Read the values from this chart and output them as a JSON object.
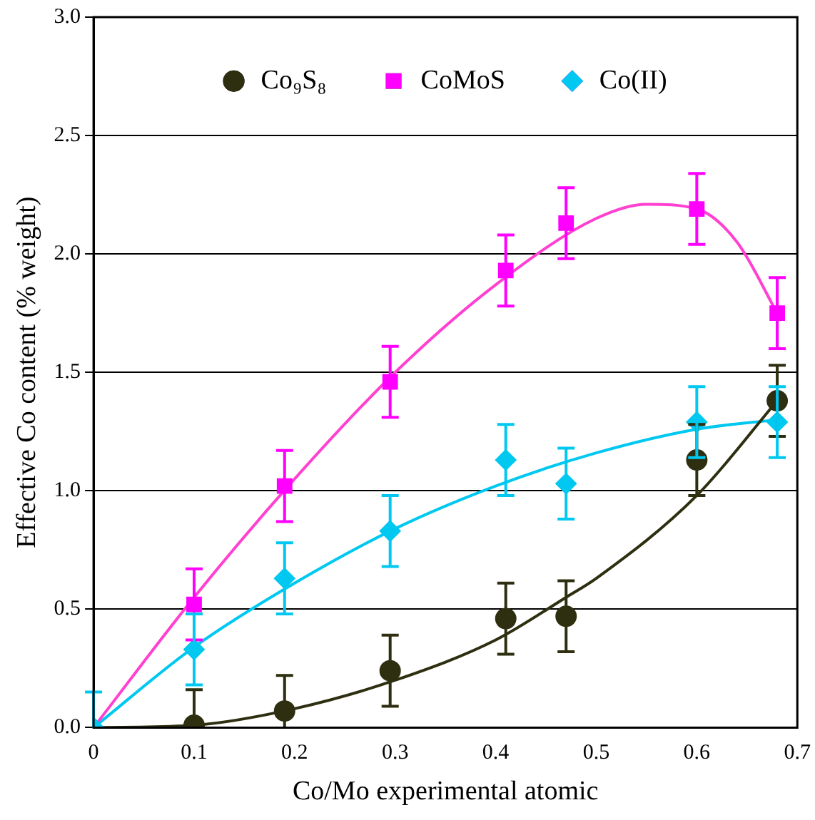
{
  "chart_data": {
    "type": "scatter",
    "xlabel": "Co/Mo experimental atomic",
    "ylabel": "Effective Co content (% weight)",
    "x": [
      0,
      0.1,
      0.19,
      0.295,
      0.41,
      0.47,
      0.6,
      0.68
    ],
    "series": [
      {
        "name": "Co₉S₈",
        "color": "#2e2e10",
        "marker": "circle",
        "values": [
          null,
          0.01,
          0.07,
          0.24,
          0.46,
          0.47,
          1.13,
          1.38
        ],
        "errors": [
          null,
          0.15,
          0.15,
          0.15,
          0.15,
          0.15,
          0.15,
          0.15
        ]
      },
      {
        "name": "CoMoS",
        "color": "#ff00ff",
        "marker": "square",
        "values": [
          null,
          0.52,
          1.02,
          1.46,
          1.93,
          2.13,
          2.19,
          1.75
        ],
        "errors": [
          null,
          0.15,
          0.15,
          0.15,
          0.15,
          0.15,
          0.15,
          0.15
        ]
      },
      {
        "name": "Co(II)",
        "color": "#00c8f0",
        "marker": "diamond",
        "values": [
          0,
          0.33,
          0.63,
          0.83,
          1.13,
          1.03,
          1.29,
          1.29
        ],
        "errors": [
          0.15,
          0.15,
          0.15,
          0.15,
          0.15,
          0.15,
          0.15,
          0.15
        ]
      },
      {
        "type": "line",
        "color": "#2e2e10",
        "marker": "none",
        "x": [
          0,
          0.1,
          0.2,
          0.3,
          0.4,
          0.47,
          0.5,
          0.6,
          0.68
        ],
        "values": [
          0,
          0.01,
          0.08,
          0.2,
          0.37,
          0.55,
          0.63,
          0.98,
          1.38
        ]
      },
      {
        "type": "line",
        "color": "#ff40d0",
        "marker": "none",
        "x": [
          0,
          0.1,
          0.2,
          0.3,
          0.4,
          0.5,
          0.55,
          0.6,
          0.64,
          0.68
        ],
        "values": [
          0,
          0.55,
          1.05,
          1.5,
          1.87,
          2.15,
          2.21,
          2.19,
          2.05,
          1.75
        ]
      },
      {
        "type": "line",
        "color": "#00c8f0",
        "marker": "none",
        "x": [
          0,
          0.1,
          0.2,
          0.3,
          0.4,
          0.5,
          0.6,
          0.68
        ],
        "values": [
          0,
          0.34,
          0.61,
          0.84,
          1.02,
          1.16,
          1.26,
          1.3
        ]
      }
    ],
    "xlim": [
      0,
      0.7
    ],
    "xticks": [
      0,
      0.1,
      0.2,
      0.3,
      0.4,
      0.5,
      0.6,
      0.7
    ],
    "ylim": [
      0,
      3
    ],
    "yticks": [
      {
        "value": 0,
        "label": "0.0"
      },
      {
        "value": 0.5,
        "label": "0.5"
      },
      {
        "value": 1,
        "label": "1.0"
      },
      {
        "value": 1.5,
        "label": "1.5"
      },
      {
        "value": 2,
        "label": "2.0"
      },
      {
        "value": 2.5,
        "label": "2.5"
      },
      {
        "value": 3,
        "label": "3.0"
      }
    ],
    "grid": "y",
    "legend": "top"
  }
}
